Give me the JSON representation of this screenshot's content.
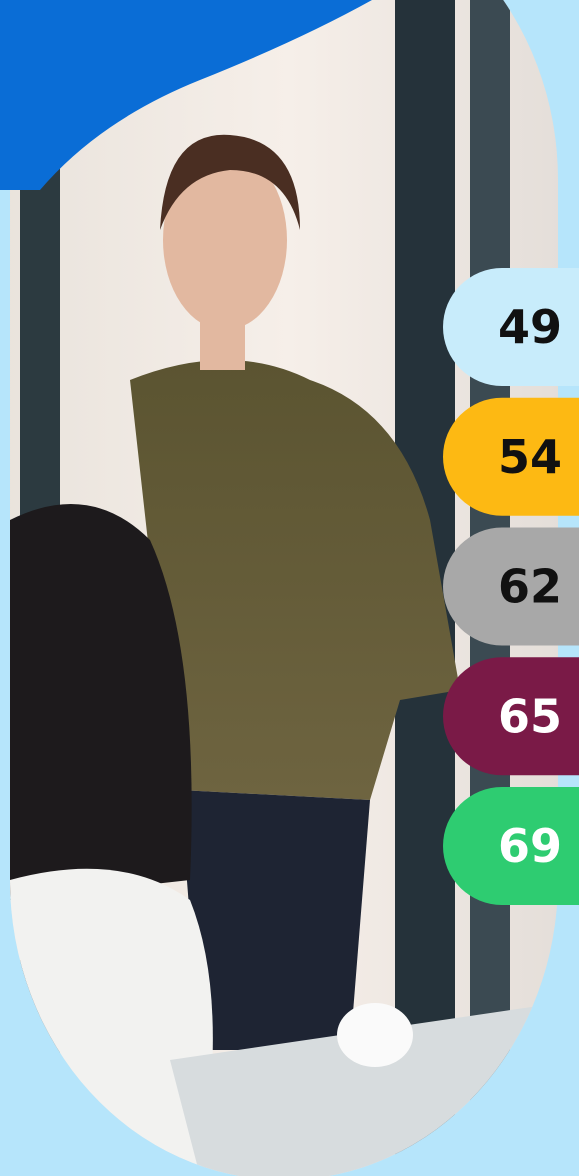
{
  "badges": [
    {
      "value": 49,
      "color": "#c8ecfb",
      "text_color": "#111111"
    },
    {
      "value": 54,
      "color": "#fdb913",
      "text_color": "#111111"
    },
    {
      "value": 62,
      "color": "#a8a8a8",
      "text_color": "#111111"
    },
    {
      "value": 65,
      "color": "#7a1a47",
      "text_color": "#ffffff"
    },
    {
      "value": 69,
      "color": "#2ecc71",
      "text_color": "#ffffff"
    }
  ]
}
